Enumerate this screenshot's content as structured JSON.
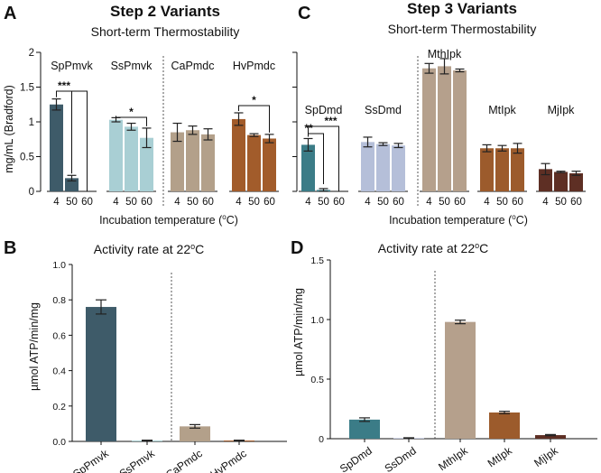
{
  "chart_data": [
    {
      "id": "A",
      "type": "bar",
      "panel_letter": "A",
      "title": "Step 2 Variants",
      "subtitle": "Short-term Thermostability",
      "ylabel": "mg/mL (Bradford)",
      "xlabel": "Incubation temperature (°C)",
      "xlabel_main": "Incubation temperature (",
      "xlabel_sup": "o",
      "xlabel_end": "C)",
      "ylim": [
        0,
        2
      ],
      "yticks": [
        {
          "v": 0,
          "label": "0"
        },
        {
          "v": 0.5,
          "label": "0.5"
        },
        {
          "v": 1,
          "label": "1"
        },
        {
          "v": 1.5,
          "label": "1.5"
        },
        {
          "v": 2,
          "label": "2"
        }
      ],
      "temps": [
        "4",
        "50",
        "60"
      ],
      "divider_after_group": 1,
      "groups": [
        {
          "name": "SpPmvk",
          "color": "#3e5b69",
          "values": [
            1.25,
            0.19,
            0.0
          ],
          "errors": [
            0.08,
            0.04,
            0.0
          ],
          "sig": [
            {
              "from": 0,
              "to": 1,
              "text": "***"
            },
            {
              "from": 0,
              "to": 2,
              "text": ""
            }
          ]
        },
        {
          "name": "SsPmvk",
          "color": "#a9cfd4",
          "values": [
            1.03,
            0.93,
            0.77
          ],
          "errors": [
            0.03,
            0.05,
            0.14
          ],
          "sig": [
            {
              "from": 0,
              "to": 2,
              "text": "*"
            }
          ]
        },
        {
          "name": "CaPmdc",
          "color": "#b3a08a",
          "values": [
            0.85,
            0.88,
            0.82
          ],
          "errors": [
            0.13,
            0.06,
            0.08
          ],
          "sig": []
        },
        {
          "name": "HvPmdc",
          "color": "#a25c2b",
          "values": [
            1.04,
            0.81,
            0.76
          ],
          "errors": [
            0.09,
            0.02,
            0.06
          ],
          "sig": [
            {
              "from": 0,
              "to": 2,
              "text": "*"
            }
          ]
        }
      ]
    },
    {
      "id": "C",
      "type": "bar",
      "panel_letter": "C",
      "title": "Step 3 Variants",
      "subtitle": "Short-term Thermostability",
      "ylabel": "",
      "xlabel": "Incubation temperature (°C)",
      "xlabel_main": "Incubation temperature (",
      "xlabel_sup": "o",
      "xlabel_end": "C)",
      "ylim": [
        0,
        2
      ],
      "yticks": [],
      "temps": [
        "4",
        "50",
        "60"
      ],
      "divider_after_group": 1,
      "groups": [
        {
          "name": "SpDmd",
          "color": "#3b7c87",
          "values": [
            0.67,
            0.02,
            0.0
          ],
          "errors": [
            0.09,
            0.02,
            0.0
          ],
          "sig": [
            {
              "from": 0,
              "to": 1,
              "text": "**"
            },
            {
              "from": 0,
              "to": 2,
              "text": "***"
            }
          ]
        },
        {
          "name": "SsDmd",
          "color": "#b5bfd9",
          "values": [
            0.71,
            0.68,
            0.66
          ],
          "errors": [
            0.07,
            0.02,
            0.03
          ],
          "sig": []
        },
        {
          "name": "MthIpk",
          "color": "#b5a08c",
          "values": [
            1.77,
            1.8,
            1.74
          ],
          "errors": [
            0.07,
            0.11,
            0.02
          ],
          "sig": []
        },
        {
          "name": "MtIpk",
          "color": "#9c5b2c",
          "values": [
            0.62,
            0.62,
            0.62
          ],
          "errors": [
            0.05,
            0.04,
            0.07
          ],
          "sig": []
        },
        {
          "name": "MjIpk",
          "color": "#5e2f24",
          "values": [
            0.32,
            0.28,
            0.26
          ],
          "errors": [
            0.08,
            0.01,
            0.03
          ],
          "sig": []
        }
      ]
    },
    {
      "id": "B",
      "type": "bar",
      "panel_letter": "B",
      "title": "Activity rate at 22°C",
      "title_main": "Activity rate at 22",
      "title_sup": "o",
      "title_end": "C",
      "ylabel": "µmol ATP/min/mg",
      "ylim": [
        0,
        1.0
      ],
      "yticks": [
        {
          "v": 0,
          "label": "0.0"
        },
        {
          "v": 0.2,
          "label": "0.2"
        },
        {
          "v": 0.4,
          "label": "0.4"
        },
        {
          "v": 0.6,
          "label": "0.6"
        },
        {
          "v": 0.8,
          "label": "0.8"
        },
        {
          "v": 1.0,
          "label": "1.0"
        }
      ],
      "divider_after": 1,
      "categories": [
        "SpPmvk",
        "SsPmvk",
        "CaPmdc",
        "HvPmdc"
      ],
      "values": [
        0.76,
        0.005,
        0.085,
        0.005
      ],
      "errors": [
        0.04,
        0.002,
        0.01,
        0.002
      ],
      "colors": [
        "#3e5b69",
        "#a9cfd4",
        "#b3a08a",
        "#a25c2b"
      ]
    },
    {
      "id": "D",
      "type": "bar",
      "panel_letter": "D",
      "title": "Activity rate at 22°C",
      "title_main": "Activity rate at 22",
      "title_sup": "o",
      "title_end": "C",
      "ylabel": "µmol ATP/min/mg",
      "ylim": [
        0,
        1.5
      ],
      "yticks": [
        {
          "v": 0,
          "label": "0"
        },
        {
          "v": 0.5,
          "label": "0.5"
        },
        {
          "v": 1.0,
          "label": "1.0"
        },
        {
          "v": 1.5,
          "label": "1.5"
        }
      ],
      "divider_after": 1,
      "categories": [
        "SpDmd",
        "SsDmd",
        "MthIpk",
        "MtIpk",
        "MjIpk"
      ],
      "values": [
        0.16,
        0.005,
        0.98,
        0.22,
        0.03
      ],
      "errors": [
        0.015,
        0.003,
        0.015,
        0.01,
        0.005
      ],
      "colors": [
        "#3b7c87",
        "#b5bfd9",
        "#b5a08c",
        "#9c5b2c",
        "#5e2f24"
      ]
    }
  ]
}
